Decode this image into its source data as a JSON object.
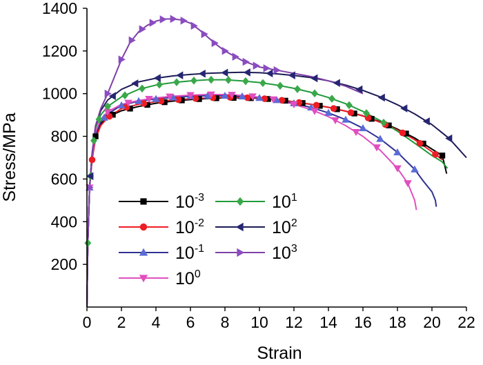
{
  "chart_data": {
    "type": "line",
    "title": "",
    "xlabel": "Strain",
    "ylabel": "Stress/MPa",
    "xlim": [
      0,
      22
    ],
    "ylim": [
      0,
      1400
    ],
    "xticks": [
      0,
      2,
      4,
      6,
      8,
      10,
      12,
      14,
      16,
      18,
      20,
      22
    ],
    "yticks": [
      200,
      400,
      600,
      800,
      1000,
      1200,
      1400
    ],
    "legend_position": "bottom-left",
    "series": [
      {
        "name": "10-3",
        "label_base": "10",
        "label_exp": "-3",
        "color": "#000000",
        "marker": "square",
        "x": [
          0,
          0.05,
          0.15,
          0.3,
          0.5,
          0.8,
          1.2,
          2,
          3,
          4,
          5,
          6,
          7,
          8,
          9,
          10,
          11,
          12,
          13,
          14,
          15,
          16,
          17,
          18,
          19,
          20,
          20.6,
          20.85
        ],
        "y": [
          0,
          300,
          560,
          700,
          800,
          860,
          890,
          920,
          940,
          955,
          965,
          972,
          977,
          980,
          980,
          978,
          972,
          962,
          950,
          936,
          918,
          896,
          868,
          834,
          792,
          740,
          710,
          625
        ],
        "markers_x": [
          0.5,
          1.5,
          2.5,
          3.5,
          4.5,
          5.5,
          6.5,
          7.5,
          8.5,
          9.5,
          10.5,
          11.5,
          12.5,
          13.5,
          14.5,
          15.5,
          16.5,
          17.5,
          18.5,
          19.5,
          20.6
        ]
      },
      {
        "name": "10-2",
        "label_base": "10",
        "label_exp": "-2",
        "color": "#ee1c24",
        "marker": "circle",
        "x": [
          0,
          0.05,
          0.15,
          0.3,
          0.5,
          0.8,
          1.2,
          2,
          3,
          4,
          5,
          6,
          7,
          8,
          9,
          10,
          11,
          12,
          13,
          14,
          15,
          16,
          17,
          18,
          19,
          20,
          20.6
        ],
        "y": [
          0,
          300,
          560,
          690,
          790,
          850,
          888,
          930,
          950,
          963,
          970,
          976,
          980,
          983,
          982,
          978,
          972,
          962,
          950,
          936,
          918,
          895,
          866,
          830,
          784,
          728,
          690
        ],
        "markers_x": [
          0.3,
          1.3,
          2.3,
          3.3,
          4.3,
          5.3,
          6.3,
          7.3,
          8.3,
          9.3,
          10.3,
          11.3,
          12.3,
          13.3,
          14.3,
          15.3,
          16.3,
          17.3,
          18.3,
          19.3,
          20.2
        ]
      },
      {
        "name": "10-1",
        "label_base": "10",
        "label_exp": "-1",
        "color": "#2e3192",
        "marker": "triangle-up",
        "marker_color": "#5b6bd6",
        "x": [
          0,
          0.05,
          0.15,
          0.3,
          0.5,
          0.8,
          1.2,
          2,
          3,
          4,
          5,
          6,
          7,
          8,
          9,
          10,
          11,
          12,
          13,
          14,
          15,
          16,
          17,
          18,
          19,
          19.5,
          20,
          20.2,
          20.25
        ],
        "y": [
          0,
          300,
          560,
          700,
          810,
          870,
          905,
          945,
          965,
          975,
          982,
          988,
          990,
          990,
          987,
          980,
          970,
          955,
          935,
          910,
          878,
          838,
          788,
          725,
          645,
          590,
          540,
          500,
          470
        ],
        "markers_x": [
          0.15,
          1,
          2,
          3,
          4,
          5,
          6,
          7,
          8,
          9,
          10,
          11,
          12,
          13,
          14,
          15,
          16,
          17,
          18,
          19
        ]
      },
      {
        "name": "100",
        "label_base": "10",
        "label_exp": "0",
        "color": "#e04fbf",
        "marker": "triangle-down",
        "x": [
          0,
          0.05,
          0.15,
          0.3,
          0.5,
          0.8,
          1.2,
          2,
          3,
          4,
          5,
          6,
          7,
          8,
          9,
          10,
          11,
          12,
          13,
          14,
          15,
          16,
          17,
          18,
          18.6,
          19,
          19.1
        ],
        "y": [
          0,
          300,
          560,
          700,
          820,
          880,
          915,
          950,
          968,
          980,
          988,
          993,
          996,
          996,
          992,
          984,
          970,
          950,
          925,
          892,
          850,
          800,
          735,
          650,
          580,
          500,
          455
        ],
        "markers_x": [
          0.15,
          1.2,
          2.4,
          3.6,
          4.8,
          6,
          7.2,
          8.4,
          9.6,
          10.8,
          12,
          13.2,
          14.4,
          15.6,
          16.8,
          18.0,
          18.6
        ]
      },
      {
        "name": "101",
        "label_base": "10",
        "label_exp": "1",
        "color": "#1f9a3a",
        "marker": "diamond",
        "marker_color": "#3aa84a",
        "x": [
          0,
          0.05,
          0.15,
          0.3,
          0.5,
          0.8,
          1.2,
          2,
          3,
          4,
          5,
          6,
          7,
          8,
          9,
          10,
          11,
          12,
          13,
          14,
          15,
          16,
          17,
          18,
          19,
          20,
          20.6,
          20.9
        ],
        "y": [
          0,
          300,
          560,
          720,
          840,
          900,
          940,
          985,
          1020,
          1040,
          1052,
          1060,
          1065,
          1065,
          1060,
          1052,
          1040,
          1025,
          1006,
          982,
          953,
          917,
          874,
          824,
          768,
          710,
          680,
          650
        ],
        "markers_x": [
          0.05,
          0.2,
          0.4,
          0.7,
          1.2,
          2.2,
          3.2,
          4.2,
          5.2,
          6.2,
          7.2,
          8.2,
          9.2,
          10.2,
          11.2,
          12.2,
          13.2,
          14.2,
          15.2,
          16.2,
          17.2
        ]
      },
      {
        "name": "102",
        "label_base": "10",
        "label_exp": "2",
        "color": "#1b1a55",
        "marker": "triangle-left",
        "marker_color": "#262673",
        "x": [
          0,
          0.05,
          0.15,
          0.3,
          0.5,
          0.8,
          1.2,
          2,
          3,
          4,
          5,
          6,
          7,
          8,
          9,
          10,
          11,
          12,
          13,
          14,
          15,
          16,
          17,
          18,
          19,
          20,
          21,
          22
        ],
        "y": [
          0,
          300,
          560,
          720,
          850,
          920,
          970,
          1020,
          1055,
          1072,
          1083,
          1090,
          1095,
          1098,
          1100,
          1098,
          1093,
          1085,
          1075,
          1060,
          1040,
          1015,
          985,
          948,
          905,
          855,
          790,
          700
        ],
        "markers_x": [
          0.2,
          1.5,
          2.8,
          4.1,
          5.4,
          6.7,
          8,
          9.3,
          10.6,
          11.9,
          13.2,
          14.5,
          15.8,
          17.1,
          18.4,
          19.7,
          21
        ]
      },
      {
        "name": "103",
        "label_base": "10",
        "label_exp": "3",
        "color": "#7d3fa6",
        "marker": "triangle-right",
        "marker_color": "#8a4cc0",
        "x": [
          0,
          0.05,
          0.15,
          0.3,
          0.5,
          0.8,
          1.2,
          1.6,
          2,
          2.5,
          3,
          3.5,
          4,
          4.5,
          5,
          5.5,
          6,
          6.5,
          7,
          7.5,
          8,
          9,
          10,
          11,
          12,
          13,
          14,
          15,
          16
        ],
        "y": [
          0,
          300,
          560,
          720,
          850,
          930,
          1000,
          1080,
          1160,
          1240,
          1290,
          1320,
          1340,
          1350,
          1350,
          1345,
          1330,
          1300,
          1265,
          1230,
          1200,
          1155,
          1125,
          1110,
          1095,
          1080,
          1060,
          1035,
          1000
        ],
        "markers_x": [
          0.15,
          1.2,
          2,
          2.6,
          3.2,
          3.8,
          4.4,
          5,
          5.6,
          6.2,
          6.8,
          7.4,
          8,
          8.6,
          9.2,
          9.8,
          10.4,
          11
        ]
      }
    ]
  }
}
